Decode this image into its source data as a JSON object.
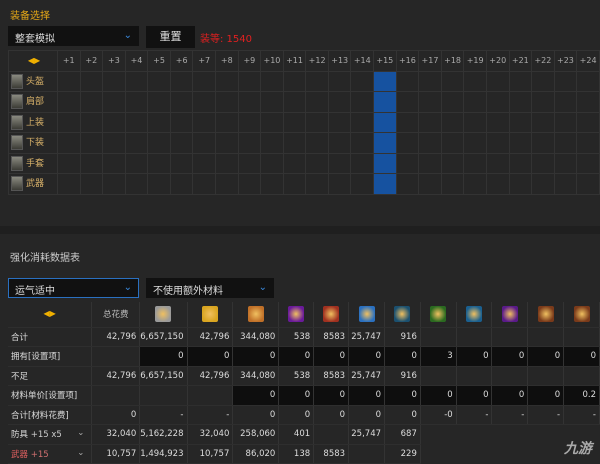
{
  "equip": {
    "title": "装备选择",
    "mode": "整套模拟",
    "reset": "重置",
    "gear_score": "装等: 1540",
    "levels": [
      "+1",
      "+2",
      "+3",
      "+4",
      "+5",
      "+6",
      "+7",
      "+8",
      "+9",
      "+10",
      "+11",
      "+12",
      "+13",
      "+14",
      "+15",
      "+16",
      "+17",
      "+18",
      "+19",
      "+20",
      "+21",
      "+22",
      "+23",
      "+24"
    ],
    "selected_level": "+15",
    "slots": [
      "头盔",
      "肩部",
      "上装",
      "下装",
      "手套",
      "武器"
    ]
  },
  "table": {
    "title": "强化消耗数据表",
    "luck": "运气适中",
    "material_option": "不使用额外材料",
    "total_cost_header": "总花费",
    "material_icons": [
      {
        "name": "silver-icon",
        "color": "#9a9a9a"
      },
      {
        "name": "gold-icon",
        "color": "#d9a520"
      },
      {
        "name": "potion-icon",
        "color": "#c07028"
      },
      {
        "name": "purple-crystal-icon",
        "color": "#6a1a9a"
      },
      {
        "name": "red-stone-icon",
        "color": "#a03020"
      },
      {
        "name": "blue-crystal-icon",
        "color": "#2a70c0"
      },
      {
        "name": "orange-flame-icon",
        "color": "#1a5070"
      },
      {
        "name": "green-stone-icon",
        "color": "#2a6a20"
      },
      {
        "name": "fire-gem-icon",
        "color": "#1a6090"
      },
      {
        "name": "purple-gem-icon",
        "color": "#5a1a8a"
      },
      {
        "name": "scroll-icon",
        "color": "#7a3a1a"
      },
      {
        "name": "book-icon",
        "color": "#7a3a1a"
      }
    ],
    "rows": [
      {
        "label": "合计",
        "style": "w",
        "total": "42,796",
        "total_style": "y",
        "cells": [
          "6,657,150",
          "42,796",
          "344,080",
          "538",
          "8583",
          "25,747",
          "916",
          "",
          "",
          "",
          "",
          ""
        ],
        "dark_from": 99
      },
      {
        "label": "拥有[设置项]",
        "style": "y",
        "total": "",
        "cells": [
          "0",
          "0",
          "0",
          "0",
          "0",
          "0",
          "0",
          "3",
          "0",
          "0",
          "0",
          "0"
        ],
        "dark_from": 0
      },
      {
        "label": "不足",
        "style": "w",
        "total": "42,796",
        "cells": [
          "6,657,150",
          "42,796",
          "344,080",
          "538",
          "8583",
          "25,747",
          "916",
          "",
          "",
          "",
          "",
          ""
        ],
        "dark_from": 99
      },
      {
        "label": "材料单价[设置项]",
        "style": "y",
        "total": "",
        "cells": [
          "",
          "",
          "0",
          "0",
          "0",
          "0",
          "0",
          "0",
          "0",
          "0",
          "0",
          "0.2"
        ],
        "dark_from": 2
      },
      {
        "label": "合计[材料花费]",
        "style": "w",
        "total": "0",
        "total_style": "y",
        "cells": [
          "-",
          "-",
          "0",
          "0",
          "0",
          "0",
          "0",
          "-0",
          "-",
          "-",
          "-",
          "-"
        ],
        "dark_from": 99
      },
      {
        "label": "防具",
        "suffix": "+15 x5",
        "style": "y",
        "total": "32,040",
        "cells": [
          "5,162,228",
          "32,040",
          "258,060",
          "401",
          "",
          "25,747",
          "687"
        ],
        "dark_from": 99
      },
      {
        "label": "武器",
        "suffix": "+15",
        "style": "r",
        "total": "10,757",
        "cells": [
          "1,494,923",
          "10,757",
          "86,020",
          "138",
          "8583",
          "",
          "229"
        ],
        "dark_from": 99
      }
    ]
  },
  "watermark": "九游"
}
